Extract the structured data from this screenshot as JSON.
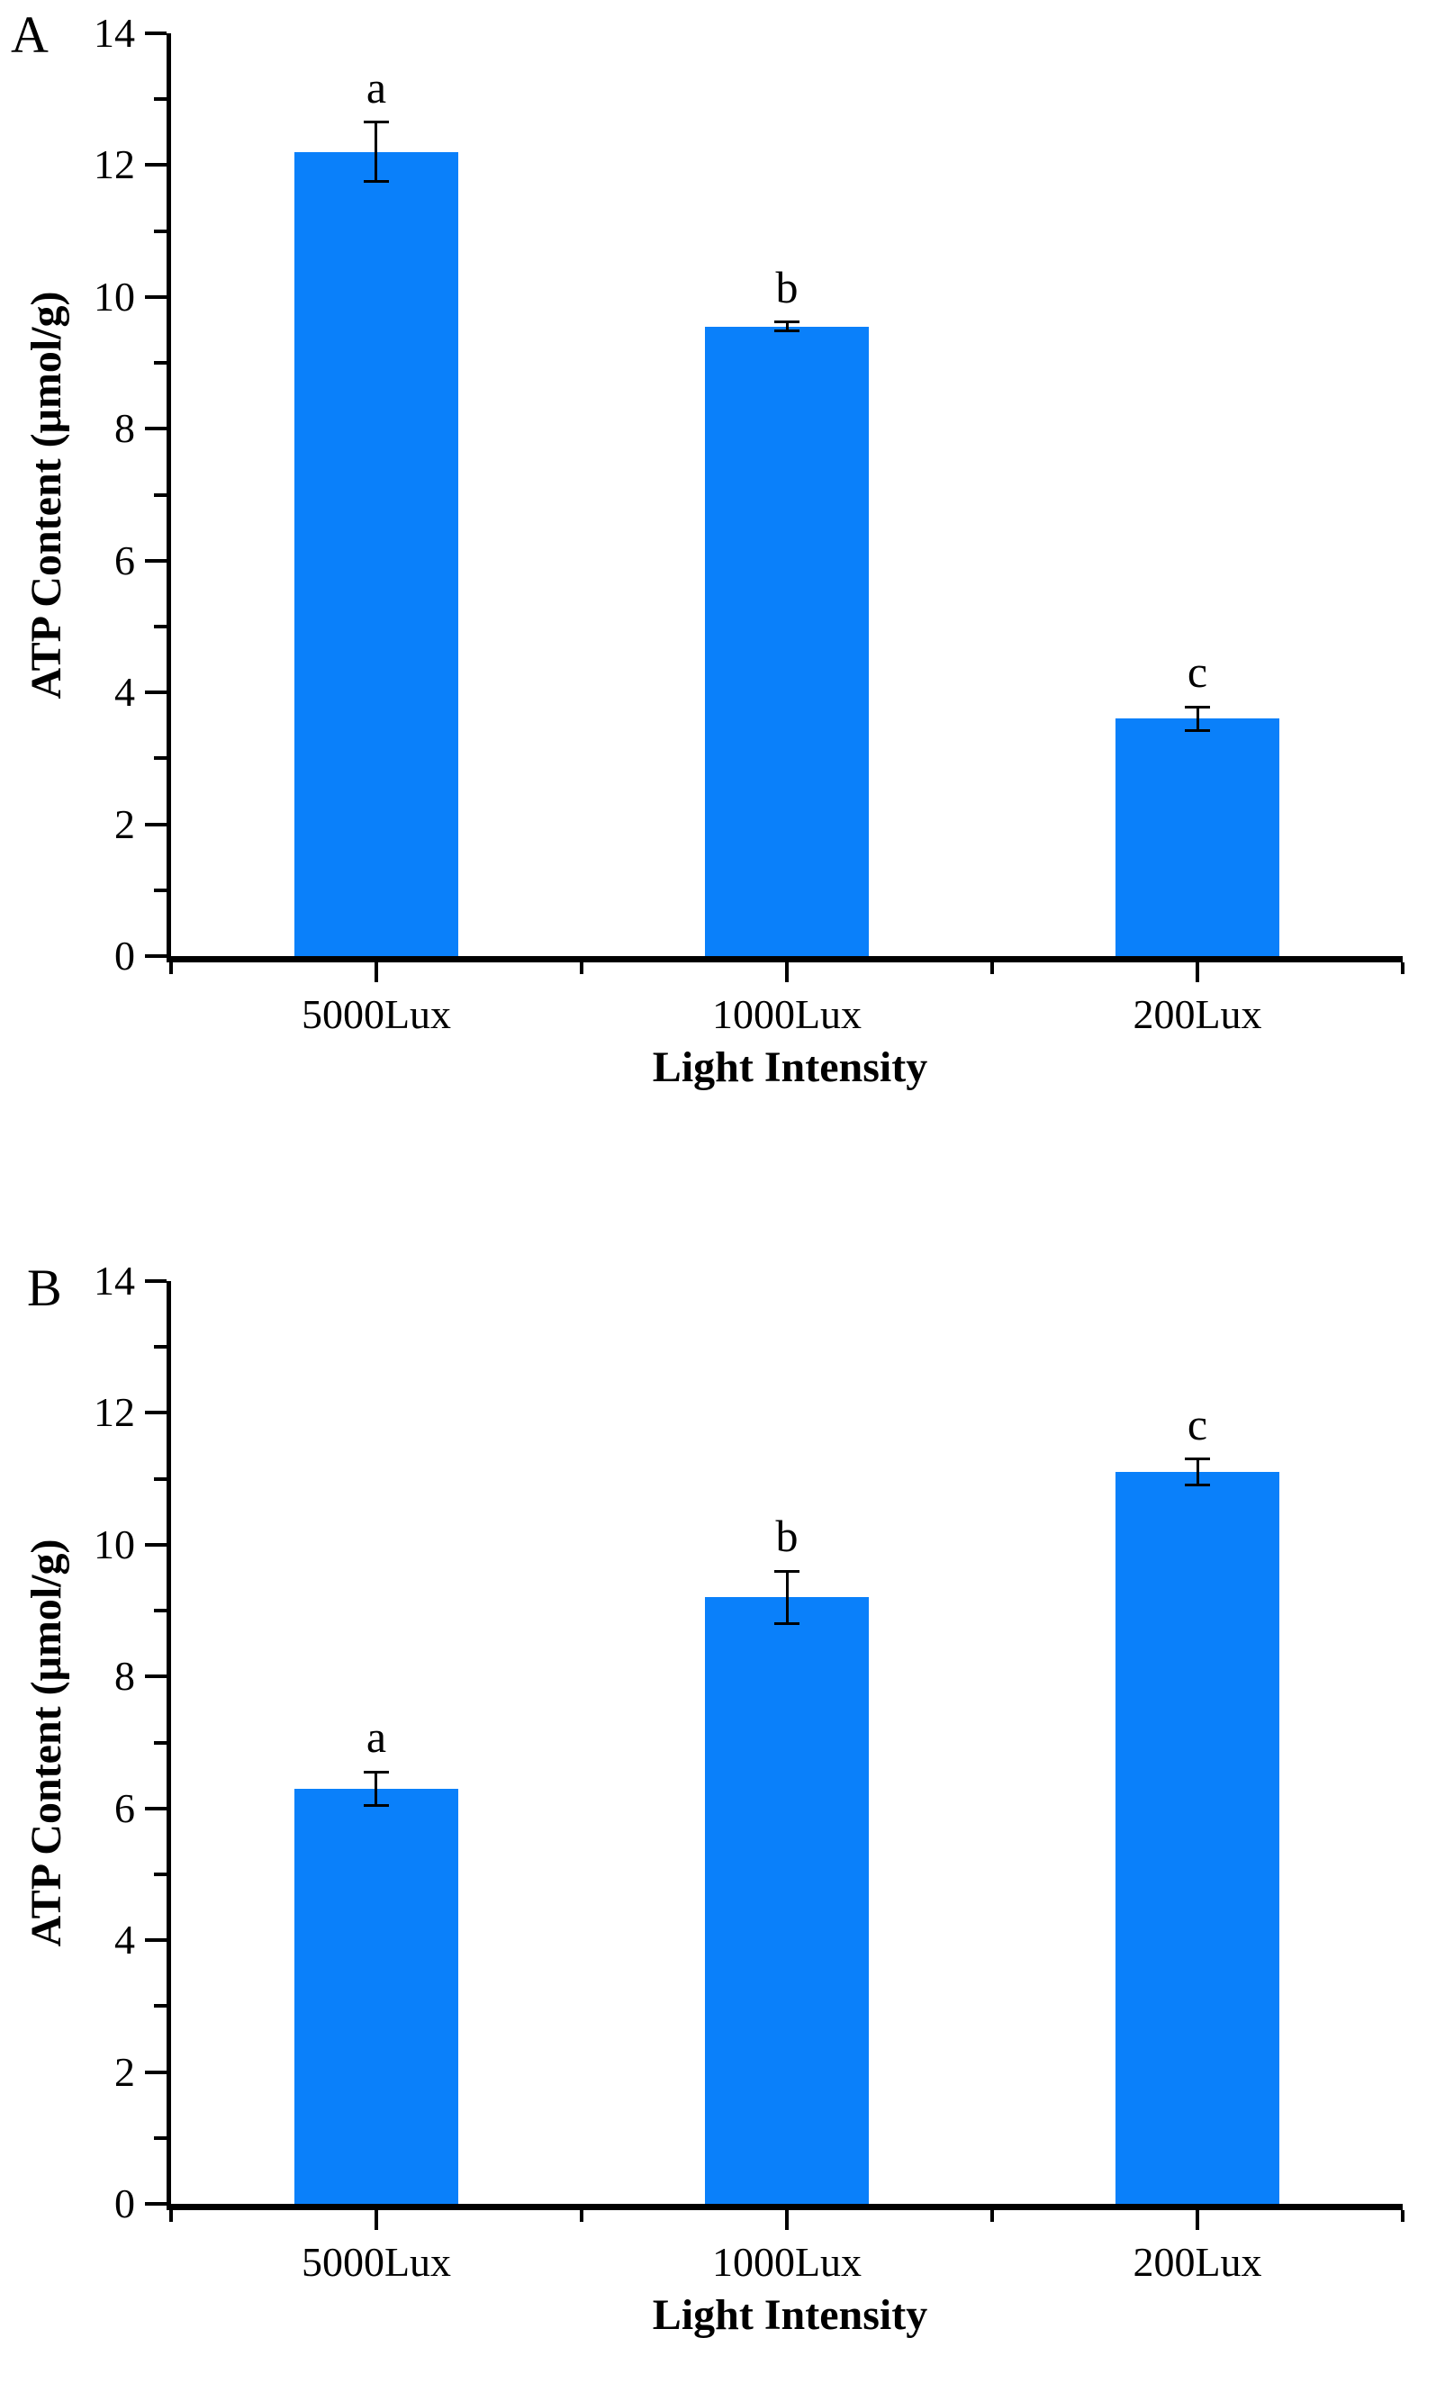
{
  "chart_data": [
    {
      "panel": "A",
      "type": "bar",
      "categories": [
        "5000Lux",
        "1000Lux",
        "200Lux"
      ],
      "values": [
        12.2,
        9.55,
        3.6
      ],
      "errors": [
        0.45,
        0.07,
        0.18
      ],
      "sig_letters": [
        "a",
        "b",
        "c"
      ],
      "xlabel": "Light Intensity",
      "ylabel": "ATP Content (μmol/g)",
      "ylim": [
        0,
        14
      ],
      "y_major_step": 2,
      "y_minor_step": 1,
      "bar_color": "#0a80fa",
      "axis_color": "#000000",
      "grid": false,
      "legend": "none",
      "error_bar_caps": true
    },
    {
      "panel": "B",
      "type": "bar",
      "categories": [
        "5000Lux",
        "1000Lux",
        "200Lux"
      ],
      "values": [
        6.3,
        9.2,
        11.1
      ],
      "errors": [
        0.25,
        0.4,
        0.2
      ],
      "sig_letters": [
        "a",
        "b",
        "c"
      ],
      "xlabel": "Light Intensity",
      "ylabel": "ATP Content (μmol/g)",
      "ylim": [
        0,
        14
      ],
      "y_major_step": 2,
      "y_minor_step": 1,
      "bar_color": "#0a80fa",
      "axis_color": "#000000",
      "grid": false,
      "legend": "none",
      "error_bar_caps": true
    }
  ]
}
